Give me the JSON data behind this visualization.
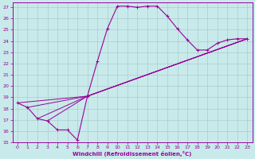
{
  "xlabel": "Windchill (Refroidissement éolien,°C)",
  "bg_color": "#c8eaea",
  "line_color": "#990099",
  "grid_color": "#aacccc",
  "xlim": [
    -0.5,
    23.5
  ],
  "ylim": [
    15,
    27.4
  ],
  "xticks": [
    0,
    1,
    2,
    3,
    4,
    5,
    6,
    7,
    8,
    9,
    10,
    11,
    12,
    13,
    14,
    15,
    16,
    17,
    18,
    19,
    20,
    21,
    22,
    23
  ],
  "yticks": [
    15,
    16,
    17,
    18,
    19,
    20,
    21,
    22,
    23,
    24,
    25,
    26,
    27
  ],
  "main_series": [
    [
      0,
      18.5
    ],
    [
      1,
      18.1
    ],
    [
      2,
      17.1
    ],
    [
      3,
      16.9
    ],
    [
      4,
      16.1
    ],
    [
      5,
      16.1
    ],
    [
      6,
      15.2
    ],
    [
      7,
      19.1
    ],
    [
      8,
      22.2
    ],
    [
      9,
      25.1
    ],
    [
      10,
      27.1
    ],
    [
      11,
      27.1
    ],
    [
      12,
      27.0
    ],
    [
      13,
      27.1
    ],
    [
      14,
      27.1
    ],
    [
      15,
      26.2
    ],
    [
      16,
      25.1
    ],
    [
      17,
      24.1
    ],
    [
      18,
      23.2
    ],
    [
      19,
      23.2
    ],
    [
      20,
      23.8
    ],
    [
      21,
      24.1
    ],
    [
      22,
      24.2
    ],
    [
      23,
      24.2
    ]
  ],
  "diag_lines": [
    {
      "x": [
        0,
        7,
        23
      ],
      "y": [
        18.5,
        19.1,
        24.2
      ]
    },
    {
      "x": [
        1,
        7,
        23
      ],
      "y": [
        18.1,
        19.1,
        24.2
      ]
    },
    {
      "x": [
        2,
        7,
        23
      ],
      "y": [
        17.1,
        19.1,
        24.2
      ]
    },
    {
      "x": [
        3,
        7,
        23
      ],
      "y": [
        16.9,
        19.1,
        24.2
      ]
    }
  ]
}
